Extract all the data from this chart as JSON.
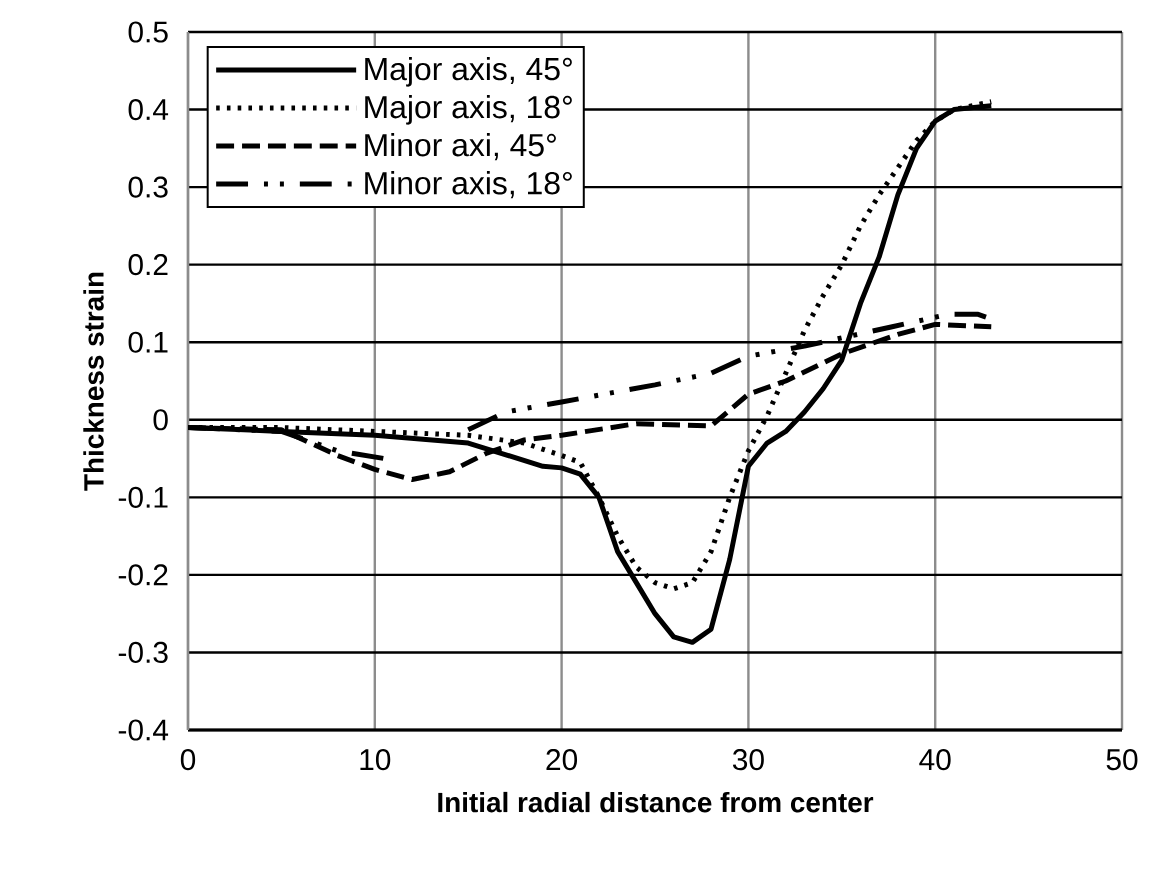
{
  "chart_data": {
    "type": "line",
    "xlabel": "Initial radial distance from center",
    "ylabel": "Thickness strain",
    "xlim": [
      0,
      50
    ],
    "ylim": [
      -0.4,
      0.5
    ],
    "xticks": [
      0,
      10,
      20,
      30,
      40,
      50
    ],
    "yticks": [
      -0.4,
      -0.3,
      -0.2,
      -0.1,
      0,
      0.1,
      0.2,
      0.3,
      0.4,
      0.5
    ],
    "grid": true,
    "legend": "top left",
    "marker": "none",
    "series": [
      {
        "name": "Major axis, 45°",
        "color": "#000000",
        "line_style": "solid",
        "x": [
          0,
          5,
          10,
          15,
          19,
          20,
          21,
          22,
          23,
          24,
          25,
          26,
          27,
          28,
          29,
          30,
          31,
          32,
          33,
          34,
          35,
          36,
          37,
          38,
          39,
          40,
          41,
          43
        ],
        "values": [
          -0.01,
          -0.015,
          -0.02,
          -0.03,
          -0.06,
          -0.062,
          -0.07,
          -0.1,
          -0.17,
          -0.21,
          -0.25,
          -0.28,
          -0.287,
          -0.27,
          -0.18,
          -0.06,
          -0.03,
          -0.015,
          0.01,
          0.04,
          0.077,
          0.15,
          0.21,
          0.29,
          0.35,
          0.385,
          0.4,
          0.405
        ]
      },
      {
        "name": "Major axis, 18°",
        "color": "#000000",
        "line_style": "dotted",
        "x": [
          0,
          5,
          10,
          15,
          18,
          20,
          21,
          22,
          23,
          24,
          25,
          26,
          27,
          28,
          29,
          30,
          31,
          32,
          33,
          34,
          35,
          36,
          37,
          38,
          39,
          40,
          41,
          43
        ],
        "values": [
          -0.01,
          -0.01,
          -0.015,
          -0.02,
          -0.03,
          -0.046,
          -0.055,
          -0.1,
          -0.15,
          -0.19,
          -0.21,
          -0.218,
          -0.21,
          -0.17,
          -0.1,
          -0.04,
          0.005,
          0.06,
          0.115,
          0.16,
          0.2,
          0.25,
          0.29,
          0.325,
          0.36,
          0.385,
          0.4,
          0.41
        ]
      },
      {
        "name": "Minor axi, 45°",
        "color": "#000000",
        "line_style": "dashed",
        "x": [
          0,
          5,
          8,
          10,
          12,
          14,
          16,
          18,
          20,
          24,
          28,
          30,
          32,
          35,
          38,
          40,
          43
        ],
        "values": [
          -0.01,
          -0.013,
          -0.046,
          -0.064,
          -0.077,
          -0.067,
          -0.043,
          -0.026,
          -0.02,
          -0.005,
          -0.008,
          0.033,
          0.05,
          0.085,
          0.11,
          0.123,
          0.12
        ]
      },
      {
        "name": "Minor axis, 18°",
        "color": "#000000",
        "line_style": "dashdot",
        "x": [
          0,
          5,
          8,
          10.5,
          13,
          15,
          17,
          20,
          25,
          28,
          30,
          33,
          37.7,
          40.7,
          42.3,
          43
        ],
        "values": [
          -0.01,
          -0.015,
          -0.04,
          -0.05,
          null,
          -0.013,
          0.01,
          0.023,
          0.045,
          0.06,
          0.082,
          0.095,
          0.12,
          0.136,
          0.136,
          0.13
        ]
      }
    ]
  }
}
